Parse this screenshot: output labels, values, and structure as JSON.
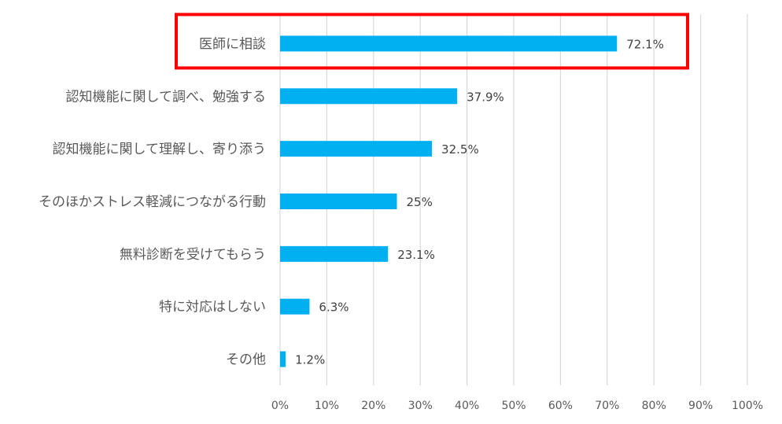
{
  "chart_data": {
    "type": "bar",
    "orientation": "horizontal",
    "title": "",
    "xlabel": "",
    "ylabel": "",
    "xlim": [
      0,
      100
    ],
    "grid": true,
    "categories": [
      "医師に相談",
      "認知機能に関して調べ、勉強する",
      "認知機能に関して理解し、寄り添う",
      "そのほかストレス軽減につながる行動",
      "無料診断を受けてもらう",
      "特に対応はしない",
      "その他"
    ],
    "values": [
      72.1,
      37.9,
      32.5,
      25,
      23.1,
      6.3,
      1.2
    ],
    "value_labels": [
      "72.1%",
      "37.9%",
      "32.5%",
      "25%",
      "23.1%",
      "6.3%",
      "1.2%"
    ],
    "tick_labels": [
      "0%",
      "10%",
      "20%",
      "30%",
      "40%",
      "50%",
      "60%",
      "70%",
      "80%",
      "90%",
      "100%"
    ],
    "highlight": {
      "category": "医師に相談",
      "style": "red box"
    },
    "colors": {
      "bar": "#00b0f0",
      "grid": "#d9d9d9",
      "highlight": "#ff0000",
      "text": "#595959"
    }
  }
}
